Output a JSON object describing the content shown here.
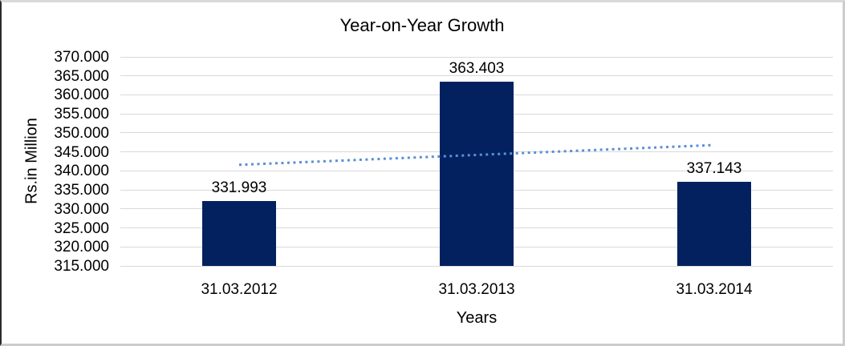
{
  "chart_data": {
    "type": "bar",
    "title": "Year-on-Year Growth",
    "xlabel": "Years",
    "ylabel": "Rs.in Million",
    "categories": [
      "31.03.2012",
      "31.03.2013",
      "31.03.2014"
    ],
    "values": [
      331.993,
      363.403,
      337.143
    ],
    "data_labels": [
      "331.993",
      "363.403",
      "337.143"
    ],
    "ylim": [
      315,
      370
    ],
    "ytick_step": 5,
    "ytick_labels": [
      "370.000",
      "365.000",
      "360.000",
      "355.000",
      "350.000",
      "345.000",
      "340.000",
      "335.000",
      "330.000",
      "325.000",
      "320.000",
      "315.000"
    ],
    "grid": true,
    "legend": false,
    "trendline": {
      "type": "linear",
      "style": "dotted",
      "start_value": 341.6,
      "end_value": 346.8
    },
    "colors": {
      "bar": "#03215F",
      "gridline": "#D9D9D9",
      "trendline": "#5B8FD4",
      "text": "#000000"
    }
  }
}
